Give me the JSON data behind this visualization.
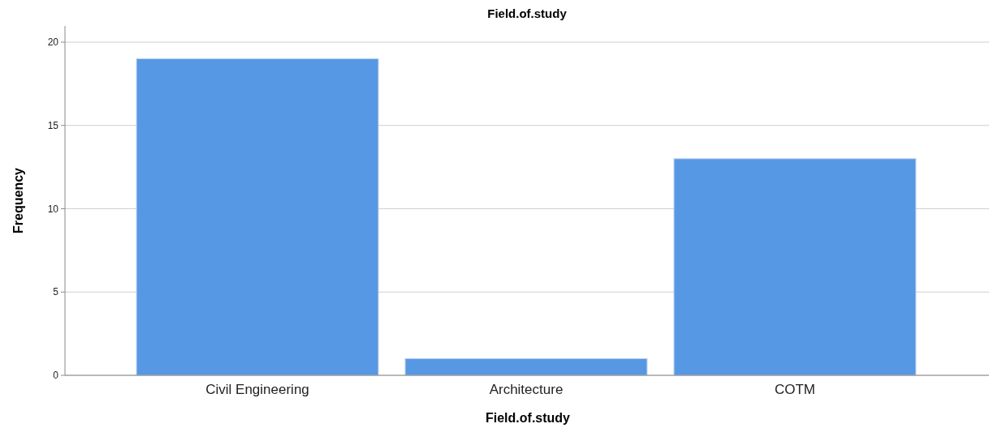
{
  "chart_data": {
    "type": "bar",
    "title": "Field.of.study",
    "xlabel": "Field.of.study",
    "ylabel": "Frequency",
    "categories": [
      "Civil Engineering",
      "Architecture",
      "COTM"
    ],
    "values": [
      19,
      1,
      13
    ],
    "color": "#5698e4",
    "ylim": [
      0,
      20
    ],
    "yticks": [
      0,
      5,
      10,
      15,
      20
    ],
    "grid": "y"
  }
}
